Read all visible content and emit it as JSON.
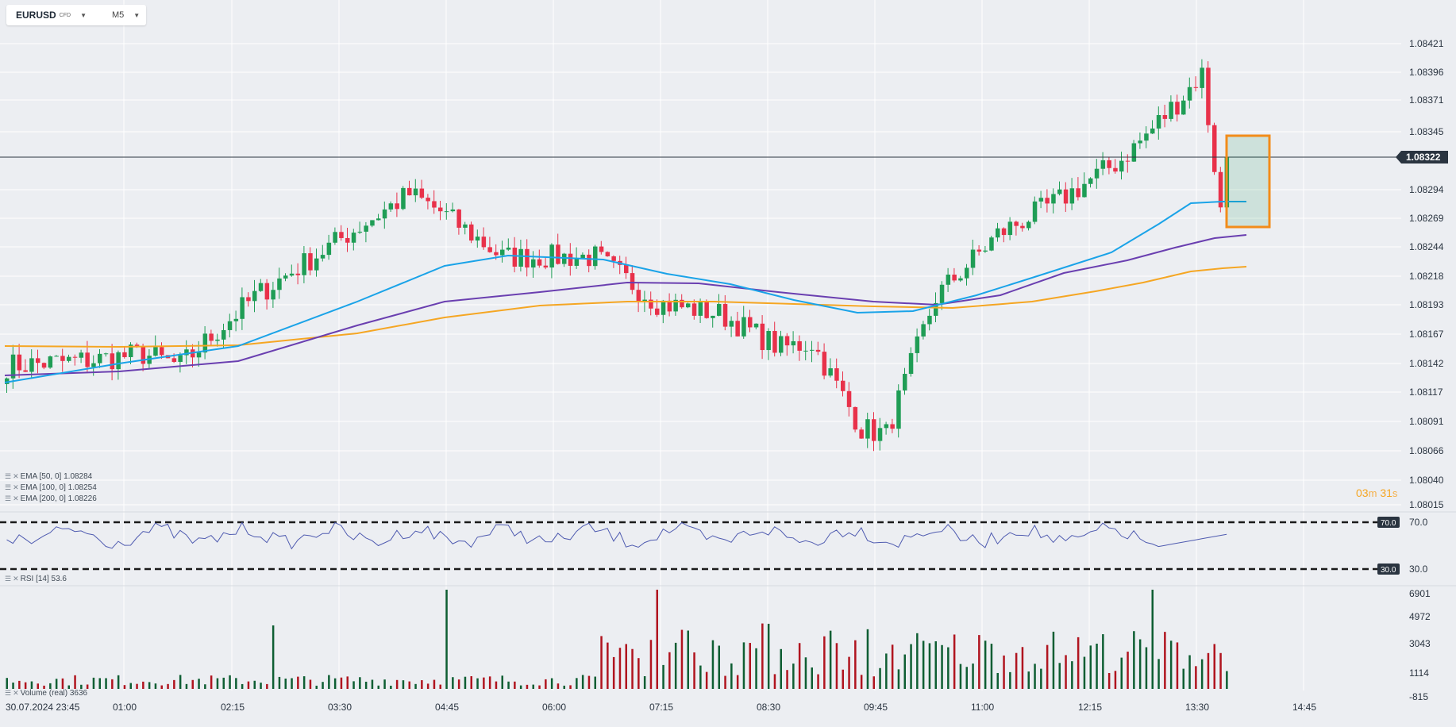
{
  "toolbar": {
    "symbol": "EURUSD",
    "instrument_type": "CFD",
    "timeframe": "M5",
    "dropdown_icon": "caret-down-icon"
  },
  "price_axis": {
    "labels": [
      "1.08421",
      "1.08396",
      "1.08371",
      "1.08345",
      "1.08322",
      "1.08294",
      "1.08269",
      "1.08244",
      "1.08218",
      "1.08193",
      "1.08167",
      "1.08142",
      "1.08117",
      "1.08091",
      "1.08066",
      "1.08040",
      "1.08015"
    ],
    "current_price": "1.08322"
  },
  "time_axis": {
    "labels": [
      "30.07.2024  23:45",
      "01:00",
      "02:15",
      "03:30",
      "04:45",
      "06:00",
      "07:15",
      "08:30",
      "09:45",
      "11:00",
      "12:15",
      "13:30",
      "14:45"
    ]
  },
  "legend": {
    "ema50": {
      "label": "EMA  [50, 0]  1.08284",
      "color": "#1aa3e8"
    },
    "ema100": {
      "label": "EMA  [100, 0]  1.08254",
      "color": "#6a3fb0"
    },
    "ema200": {
      "label": "EMA  [200, 0]  1.08226",
      "color": "#f5a623"
    },
    "rsi": "RSI  [14]  53.6",
    "volume": "Volume  (real)  3636",
    "legend_icon": "settings-icon",
    "close_icon": "close-icon"
  },
  "countdown": {
    "minutes": "03",
    "min_unit": "m",
    "seconds": "31",
    "sec_unit": "s"
  },
  "rsi_panel": {
    "upper": "70.0",
    "lower": "30.0",
    "axis_upper": "70.0",
    "axis_lower": "30.0"
  },
  "volume_axis": {
    "labels": [
      "6901",
      "4972",
      "3043",
      "1114",
      "-815"
    ]
  },
  "colors": {
    "bull": "#1f9d55",
    "bear": "#e8314a",
    "vol_bull": "#0e5e33",
    "vol_bear": "#b0141f",
    "rsi_line": "#4f5bb0",
    "selection": "#f28c1a"
  }
}
